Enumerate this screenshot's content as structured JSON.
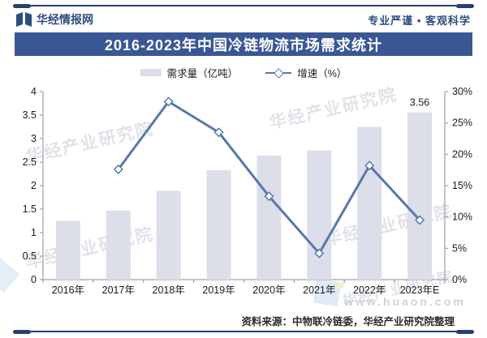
{
  "header": {
    "brand": "华经情报网",
    "slogan": "专业严谨 • 客观科学"
  },
  "title": "2016-2023年中国冷链物流市场需求统计",
  "legend": [
    {
      "label": "需求量（亿吨）",
      "type": "bar"
    },
    {
      "label": "增速（%）",
      "type": "line"
    }
  ],
  "chart_data": {
    "type": "bar",
    "categories": [
      "2016年",
      "2017年",
      "2018年",
      "2019年",
      "2020年",
      "2021年",
      "2022年",
      "2023年E"
    ],
    "series": [
      {
        "name": "需求量（亿吨）",
        "type": "bar",
        "axis": "left",
        "values": [
          1.25,
          1.47,
          1.89,
          2.33,
          2.64,
          2.75,
          3.25,
          3.56
        ],
        "color": "#dcdfe9"
      },
      {
        "name": "增速（%）",
        "type": "line",
        "axis": "right",
        "values": [
          null,
          17.6,
          28.4,
          23.5,
          13.3,
          4.2,
          18.2,
          9.5
        ],
        "color": "#5878aa"
      }
    ],
    "left_axis": {
      "min": 0,
      "max": 4,
      "step": 0.5,
      "ticks": [
        "0",
        "0.5",
        "1",
        "1.5",
        "2",
        "2.5",
        "3",
        "3.5",
        "4"
      ]
    },
    "right_axis": {
      "min": 0,
      "max": 30,
      "step": 5,
      "ticks": [
        "0%",
        "5%",
        "10%",
        "15%",
        "20%",
        "25%",
        "30%"
      ]
    },
    "annotations": [
      {
        "text": "3.56",
        "category": "2023年E"
      }
    ],
    "grid": false,
    "legend_position": "top"
  },
  "watermarks": {
    "text": "华经产业研究院",
    "url": "www.huaon.com"
  },
  "footer": {
    "source": "资料来源：中物联冷链委，华经产业研究院整理"
  },
  "colors": {
    "navy": "#26406f",
    "brand_text": "#2e4d80",
    "title_bg": "#3a5795",
    "bar": "#dcdfe9",
    "line": "#5878aa",
    "axis": "#9aa0aa",
    "label": "#1a1a1a"
  }
}
